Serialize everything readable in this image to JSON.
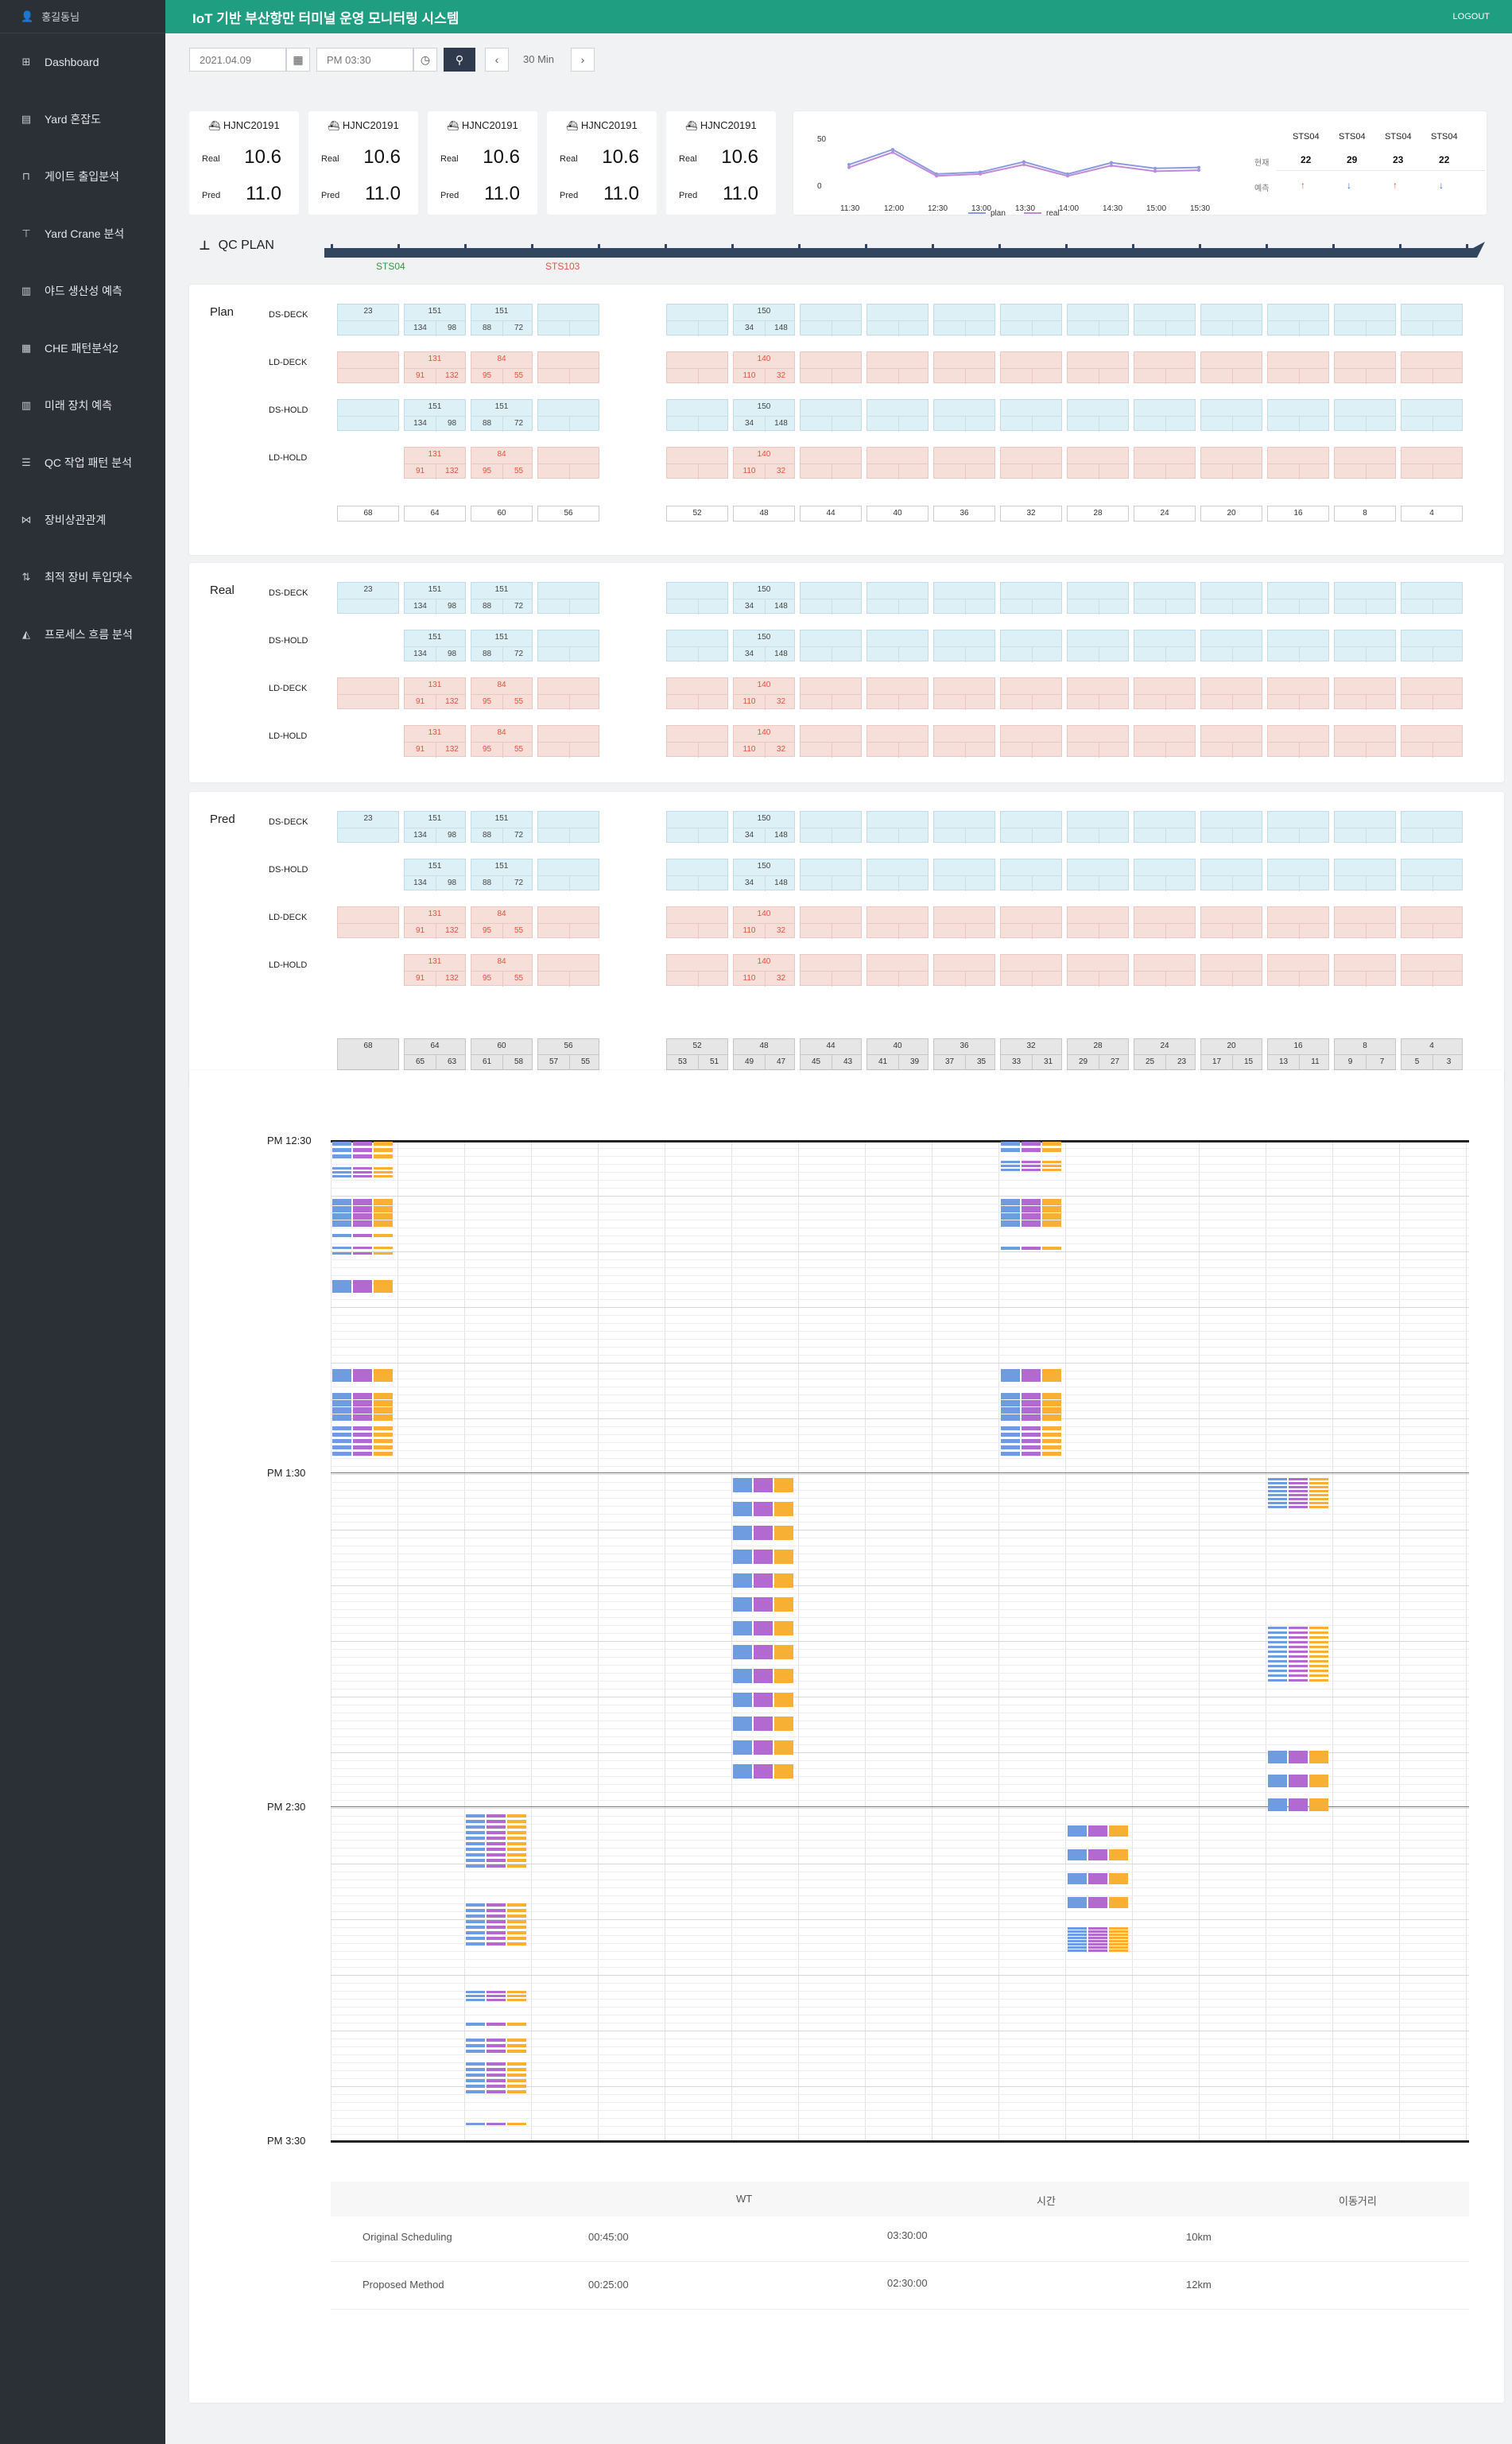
{
  "app": {
    "title": "IoT 기반 부산항만 터미널 운영 모니터링 시스템",
    "logout": "LOGOUT",
    "user": "홍길동님"
  },
  "sidebar": {
    "items": [
      {
        "label": "Dashboard",
        "icon": "grid-icon"
      },
      {
        "label": "Yard 혼잡도",
        "icon": "clipboard-icon"
      },
      {
        "label": "게이트 출입분석",
        "icon": "gate-icon"
      },
      {
        "label": "Yard Crane 분석",
        "icon": "crane-icon"
      },
      {
        "label": "야드 생산성 예측",
        "icon": "bar-chart-icon"
      },
      {
        "label": "CHE 패턴분석2",
        "icon": "table-icon"
      },
      {
        "label": "미래 장치 예측",
        "icon": "bar-chart-icon"
      },
      {
        "label": "QC 작업 패턴 분석",
        "icon": "list-icon"
      },
      {
        "label": "장비상관관계",
        "icon": "network-icon"
      },
      {
        "label": "최적 장비 투입댓수",
        "icon": "sort-icon"
      },
      {
        "label": "프로세스 흐름 분석",
        "icon": "area-chart-icon"
      }
    ]
  },
  "controls": {
    "date": "2021.04.09",
    "time": "PM 03:30",
    "interval": "30 Min"
  },
  "vessels": [
    {
      "name": "HJNC20191",
      "real_label": "Real",
      "real": "10.6",
      "pred_label": "Pred",
      "pred": "11.0"
    },
    {
      "name": "HJNC20191",
      "real_label": "Real",
      "real": "10.6",
      "pred_label": "Pred",
      "pred": "11.0"
    },
    {
      "name": "HJNC20191",
      "real_label": "Real",
      "real": "10.6",
      "pred_label": "Pred",
      "pred": "11.0"
    },
    {
      "name": "HJNC20191",
      "real_label": "Real",
      "real": "10.6",
      "pred_label": "Pred",
      "pred": "11.0"
    },
    {
      "name": "HJNC20191",
      "real_label": "Real",
      "real": "10.6",
      "pred_label": "Pred",
      "pred": "11.0"
    }
  ],
  "chart_data": {
    "type": "line",
    "x": [
      "11:30",
      "12:00",
      "12:30",
      "13:00",
      "13:30",
      "14:00",
      "14:30",
      "15:00",
      "15:30"
    ],
    "series": [
      {
        "name": "plan",
        "values": [
          22,
          38,
          12,
          14,
          25,
          12,
          24,
          18,
          19
        ],
        "color": "#8a9be0"
      },
      {
        "name": "real",
        "values": [
          19,
          35,
          10,
          12,
          22,
          10,
          21,
          15,
          16
        ],
        "color": "#c08ad8"
      }
    ],
    "ylim": [
      -10,
      60
    ],
    "yticks": [
      0,
      50
    ]
  },
  "sts_table": {
    "headers": [
      "STS04",
      "STS04",
      "STS04",
      "STS04"
    ],
    "rows": [
      {
        "label": "현재",
        "values": [
          "22",
          "29",
          "23",
          "22"
        ]
      },
      {
        "label": "예측",
        "values": [
          "↑",
          "↓",
          "↑",
          "↓"
        ],
        "colors": [
          "#e0533f",
          "#2f5fd0",
          "#e0533f",
          "#2f5fd0"
        ]
      }
    ]
  },
  "qc_plan": {
    "title": "QC PLAN",
    "markers": [
      {
        "label": "STS04",
        "color": "#2f9a3a"
      },
      {
        "label": "STS103",
        "color": "#e0533f"
      }
    ]
  },
  "bays": [
    "68",
    "64",
    "60",
    "56",
    "52",
    "48",
    "44",
    "40",
    "36",
    "32",
    "28",
    "24",
    "20",
    "16",
    "8",
    "4"
  ],
  "pred_bay_pairs": [
    [
      "",
      ""
    ],
    [
      "65",
      "63"
    ],
    [
      "61",
      "58"
    ],
    [
      "57",
      "55"
    ],
    [
      "53",
      "51"
    ],
    [
      "49",
      "47"
    ],
    [
      "45",
      "43"
    ],
    [
      "41",
      "39"
    ],
    [
      "37",
      "35"
    ],
    [
      "33",
      "31"
    ],
    [
      "29",
      "27"
    ],
    [
      "25",
      "23"
    ],
    [
      "17",
      "15"
    ],
    [
      "13",
      "11"
    ],
    [
      "9",
      "7"
    ],
    [
      "5",
      "3"
    ]
  ],
  "blue_cell": {
    "single": "23",
    "a": {
      "t": "151",
      "l": "134",
      "r": "98"
    },
    "b": {
      "t": "151",
      "l": "88",
      "r": "72"
    },
    "c": {
      "t": "150",
      "l": "34",
      "r": "148"
    }
  },
  "red_cell": {
    "a": {
      "t": "131",
      "l": "91",
      "r": "132"
    },
    "b": {
      "t": "84",
      "l": "95",
      "r": "55"
    },
    "c": {
      "t": "140",
      "l": "110",
      "r": "32"
    }
  },
  "sections": [
    {
      "label": "Plan",
      "rows": [
        "DS-DECK",
        "LD-DECK",
        "DS-HOLD",
        "LD-HOLD"
      ]
    },
    {
      "label": "Real",
      "rows": [
        "DS-DECK",
        "DS-HOLD",
        "LD-DECK",
        "LD-HOLD"
      ]
    },
    {
      "label": "Pred",
      "rows": [
        "DS-DECK",
        "DS-HOLD",
        "LD-DECK",
        "LD-HOLD"
      ]
    }
  ],
  "timeline": {
    "labels": [
      "PM 12:30",
      "PM  1:30",
      "PM  2:30",
      "PM  3:30"
    ]
  },
  "summary": {
    "headers": [
      "WT",
      "시간",
      "이동거리"
    ],
    "rows": [
      {
        "name": "Original Scheduling",
        "wt": "00:45:00",
        "time": "03:30:00",
        "dist": "10km"
      },
      {
        "name": "Proposed Method",
        "wt": "00:25:00",
        "time": "02:30:00",
        "dist": "12km"
      }
    ]
  }
}
